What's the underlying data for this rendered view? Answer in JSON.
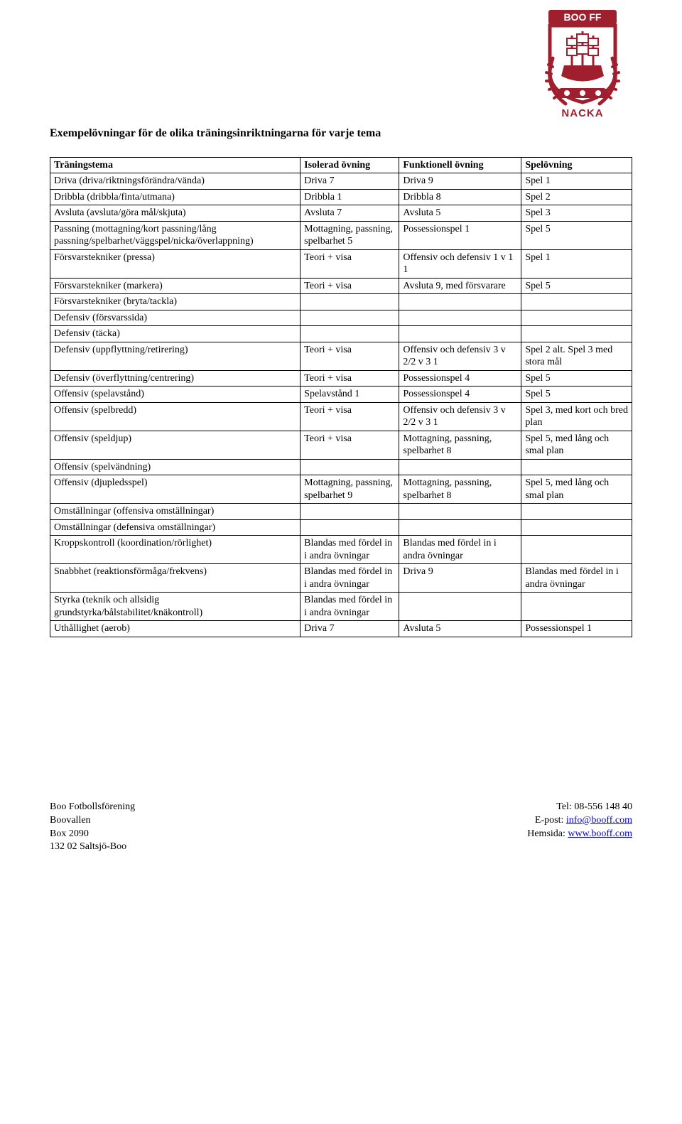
{
  "logo": {
    "top_label": "BOO FF",
    "bottom_label": "NACKA",
    "brand_color": "#a01f2e",
    "border_color": "#a01f2e"
  },
  "page_title": "Exempelövningar för de olika träningsinriktningarna för varje tema",
  "table": {
    "columns": [
      "Träningstema",
      "Isolerad övning",
      "Funktionell övning",
      "Spelövning"
    ],
    "rows": [
      [
        "Driva (driva/riktningsförändra/vända)",
        "Driva 7",
        "Driva 9",
        "Spel 1"
      ],
      [
        "Dribbla (dribbla/finta/utmana)",
        "Dribbla 1",
        "Dribbla 8",
        "Spel 2"
      ],
      [
        "Avsluta (avsluta/göra mål/skjuta)",
        "Avsluta 7",
        "Avsluta 5",
        "Spel 3"
      ],
      [
        "Passning (mottagning/kort passning/lång passning/spelbarhet/väggspel/nicka/överlappning)",
        "Mottagning, passning, spelbarhet 5",
        "Possessionspel 1",
        "Spel 5"
      ],
      [
        "Försvarstekniker (pressa)",
        "Teori + visa",
        "Offensiv och defensiv 1 v 1 1",
        "Spel 1"
      ],
      [
        "Försvarstekniker (markera)",
        "Teori + visa",
        "Avsluta 9, med försvarare",
        "Spel 5"
      ],
      [
        "Försvarstekniker (bryta/tackla)",
        "",
        "",
        ""
      ],
      [
        "Defensiv (försvarssida)",
        "",
        "",
        ""
      ],
      [
        "Defensiv (täcka)",
        "",
        "",
        ""
      ],
      [
        "Defensiv (uppflyttning/retirering)",
        "Teori + visa",
        "Offensiv och defensiv 3 v 2/2 v 3 1",
        "Spel 2 alt. Spel 3 med stora mål"
      ],
      [
        "Defensiv (överflyttning/centrering)",
        "Teori + visa",
        "Possessionspel 4",
        "Spel 5"
      ],
      [
        "Offensiv (spelavstånd)",
        "Spelavstånd 1",
        "Possessionspel 4",
        "Spel 5"
      ],
      [
        "Offensiv (spelbredd)",
        "Teori + visa",
        "Offensiv och defensiv 3 v 2/2 v 3 1",
        "Spel 3, med kort och bred plan"
      ],
      [
        "Offensiv (speldjup)",
        "Teori + visa",
        "Mottagning, passning, spelbarhet 8",
        "Spel 5, med lång och smal plan"
      ],
      [
        "Offensiv (spelvändning)",
        "",
        "",
        ""
      ],
      [
        "Offensiv (djupledsspel)",
        "Mottagning, passning, spelbarhet 9",
        "Mottagning, passning, spelbarhet 8",
        "Spel 5, med lång och smal plan"
      ],
      [
        "Omställningar (offensiva omställningar)",
        "",
        "",
        ""
      ],
      [
        "Omställningar (defensiva omställningar)",
        "",
        "",
        ""
      ],
      [
        "Kroppskontroll (koordination/rörlighet)",
        "Blandas med fördel in i andra övningar",
        "Blandas med fördel in i andra övningar",
        ""
      ],
      [
        "Snabbhet (reaktionsförmåga/frekvens)",
        "Blandas med fördel in i andra övningar",
        "Driva 9",
        "Blandas med fördel in i andra övningar"
      ],
      [
        "Styrka (teknik och allsidig grundstyrka/bålstabilitet/knäkontroll)",
        "Blandas med fördel in i andra övningar",
        "",
        ""
      ],
      [
        "Uthållighet (aerob)",
        "Driva 7",
        "Avsluta 5",
        "Possessionspel 1"
      ]
    ]
  },
  "footer": {
    "left": {
      "line1": "Boo Fotbollsförening",
      "line2": "Boovallen",
      "line3": "Box 2090",
      "line4": "132 02 Saltsjö-Boo"
    },
    "right": {
      "tel_label": "Tel: ",
      "tel": "08-556 148 40",
      "email_label": "E-post: ",
      "email": "info@booff.com",
      "site_label": "Hemsida: ",
      "site": "www.booff.com"
    }
  }
}
